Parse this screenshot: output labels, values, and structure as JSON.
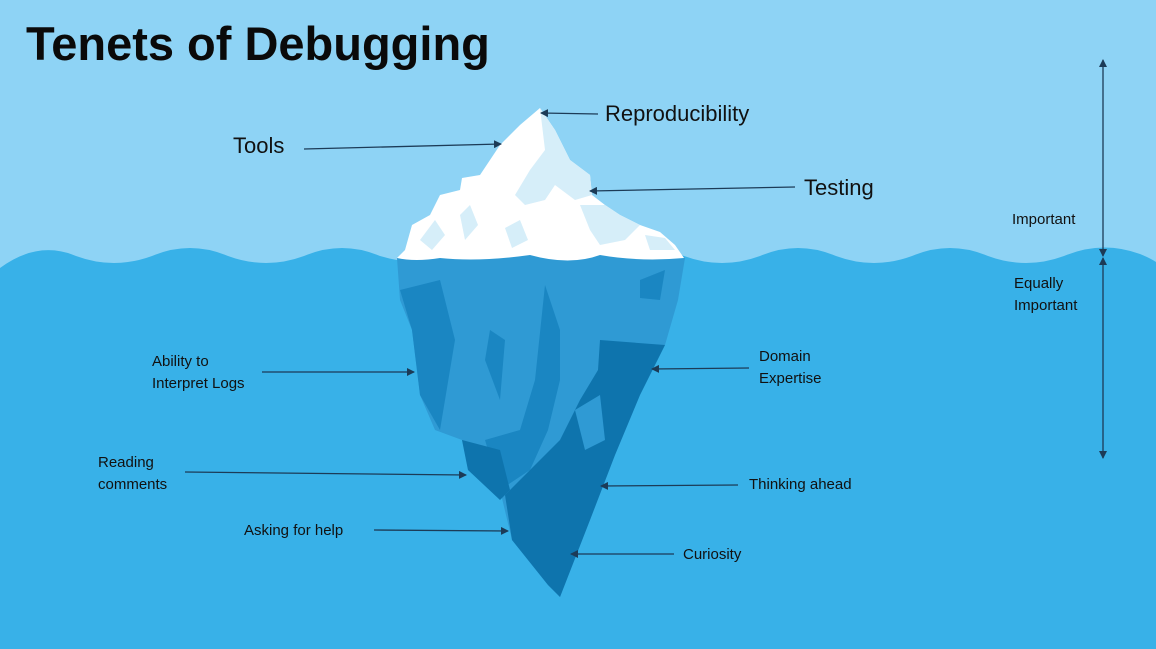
{
  "title": "Tenets of Debugging",
  "colors": {
    "sky": "#8ed3f5",
    "water": "#38b1e8",
    "ice_top": "#ffffff",
    "ice_shadow": "#d6eef9",
    "ice_under_light": "#2f9ad4",
    "ice_under_mid": "#1a86c2",
    "ice_under_dark": "#0e74ad",
    "arrow": "#1c3b57"
  },
  "above_water": {
    "labels": {
      "reproducibility": "Reproducibility",
      "tools": "Tools",
      "testing": "Testing"
    }
  },
  "below_water": {
    "labels": {
      "ability_logs": "Ability to\nInterpret Logs",
      "domain_expertise": "Domain\nExpertise",
      "reading_comments": "Reading\ncomments",
      "thinking_ahead": "Thinking ahead",
      "asking_help": "Asking for help",
      "curiosity": "Curiosity"
    }
  },
  "scale": {
    "important": "Important",
    "equally_important": "Equally\nImportant"
  }
}
